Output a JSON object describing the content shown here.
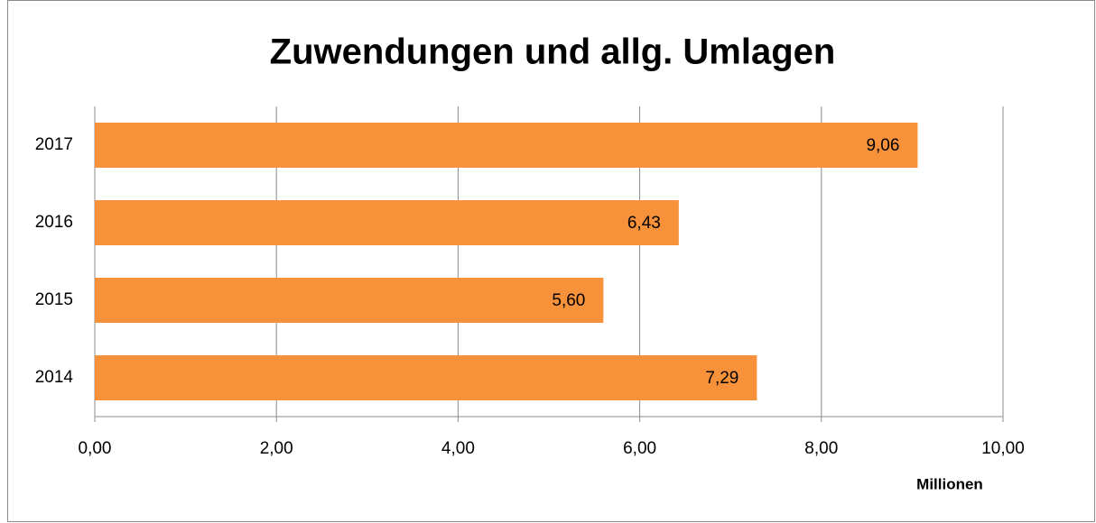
{
  "chart_data": {
    "type": "bar",
    "orientation": "horizontal",
    "title": "Zuwendungen und allg. Umlagen",
    "x_unit_label": "Millionen",
    "categories": [
      "2017",
      "2016",
      "2015",
      "2014"
    ],
    "values": [
      9.06,
      6.43,
      5.6,
      7.29
    ],
    "value_labels": [
      "9,06",
      "6,43",
      "5,60",
      "7,29"
    ],
    "color": "#f7923a",
    "xlim": [
      0,
      10
    ],
    "xticks": [
      {
        "value": 0,
        "label": "0,00"
      },
      {
        "value": 2,
        "label": "2,00"
      },
      {
        "value": 4,
        "label": "4,00"
      },
      {
        "value": 6,
        "label": "6,00"
      },
      {
        "value": 8,
        "label": "8,00"
      },
      {
        "value": 10,
        "label": "10,00"
      }
    ],
    "grid": true
  }
}
